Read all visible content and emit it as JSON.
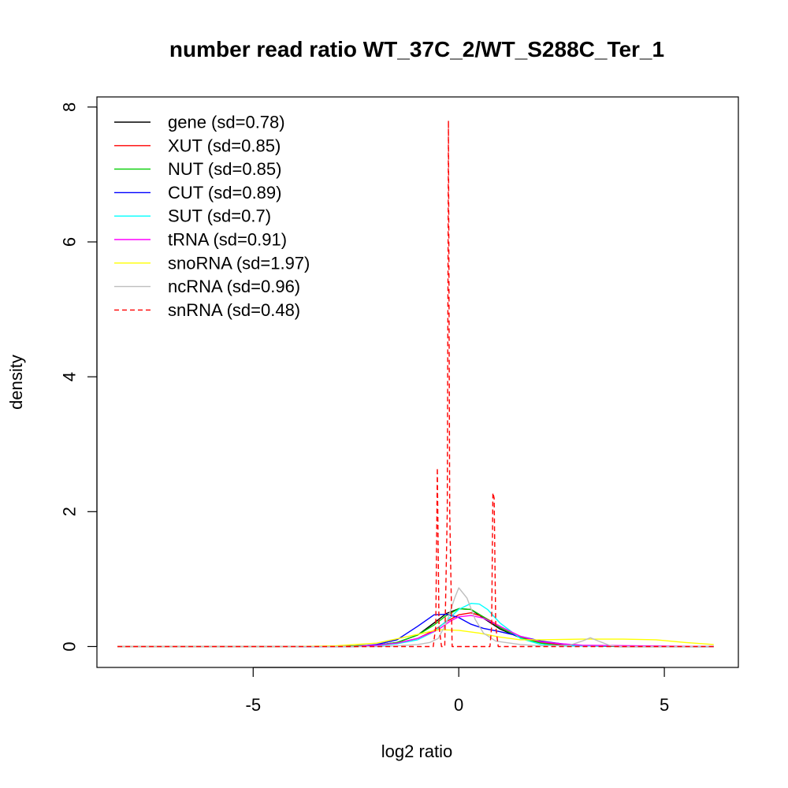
{
  "chart_data": {
    "type": "line",
    "title": "number read ratio WT_37C_2/WT_S288C_Ter_1",
    "xlabel": "log2 ratio",
    "ylabel": "density",
    "xlim": [
      -8.8,
      6.8
    ],
    "ylim": [
      -0.31,
      8.15
    ],
    "x_ticks": [
      -5,
      0,
      5
    ],
    "x_tick_labels": [
      "-5",
      "0",
      "5"
    ],
    "y_ticks": [
      0,
      2,
      4,
      6,
      8
    ],
    "y_tick_labels": [
      "0",
      "2",
      "4",
      "6",
      "8"
    ],
    "grid": false,
    "legend_position": "top-left",
    "series": [
      {
        "name": "gene (sd=0.78)",
        "color": "#000000",
        "dash": "solid",
        "x": [
          -8.3,
          -3,
          -2,
          -1.5,
          -1,
          -0.6,
          -0.3,
          0,
          0.3,
          0.6,
          1,
          1.5,
          2,
          2.5,
          3,
          4,
          6.2
        ],
        "y": [
          0,
          0,
          0.02,
          0.06,
          0.17,
          0.35,
          0.49,
          0.56,
          0.55,
          0.42,
          0.26,
          0.13,
          0.06,
          0.03,
          0.01,
          0,
          0
        ]
      },
      {
        "name": "XUT (sd=0.85)",
        "color": "#ff0000",
        "dash": "solid",
        "x": [
          -8.3,
          -3,
          -2,
          -1.5,
          -1,
          -0.6,
          -0.3,
          0,
          0.3,
          0.6,
          1,
          1.5,
          2,
          2.5,
          3,
          6.2
        ],
        "y": [
          0,
          0,
          0.02,
          0.05,
          0.12,
          0.24,
          0.37,
          0.47,
          0.5,
          0.44,
          0.3,
          0.15,
          0.06,
          0.02,
          0.01,
          0
        ]
      },
      {
        "name": "NUT (sd=0.85)",
        "color": "#00cd00",
        "dash": "solid",
        "x": [
          -8.3,
          -3,
          -2,
          -1.5,
          -1,
          -0.6,
          -0.3,
          0,
          0.3,
          0.6,
          1,
          1.5,
          2,
          2.5,
          6.2
        ],
        "y": [
          0,
          0,
          0.02,
          0.06,
          0.17,
          0.32,
          0.46,
          0.56,
          0.55,
          0.44,
          0.28,
          0.13,
          0.05,
          0.01,
          0
        ]
      },
      {
        "name": "CUT (sd=0.89)",
        "color": "#0000ff",
        "dash": "solid",
        "x": [
          -8.3,
          -2.5,
          -2,
          -1.5,
          -1,
          -0.6,
          -0.3,
          0,
          0.3,
          0.6,
          1,
          1.5,
          2,
          2.5,
          3,
          6.2
        ],
        "y": [
          0,
          0,
          0.03,
          0.1,
          0.3,
          0.47,
          0.48,
          0.43,
          0.33,
          0.27,
          0.22,
          0.15,
          0.08,
          0.04,
          0.01,
          0
        ]
      },
      {
        "name": "SUT (sd=0.7)",
        "color": "#00ffff",
        "dash": "solid",
        "x": [
          -8.3,
          -2.5,
          -2,
          -1.5,
          -1,
          -0.6,
          -0.3,
          0,
          0.3,
          0.5,
          0.7,
          1,
          1.5,
          2,
          2.5,
          6.2
        ],
        "y": [
          0,
          0,
          0.01,
          0.04,
          0.1,
          0.22,
          0.38,
          0.55,
          0.64,
          0.63,
          0.55,
          0.35,
          0.12,
          0.03,
          0.01,
          0
        ]
      },
      {
        "name": "tRNA (sd=0.91)",
        "color": "#ff00ff",
        "dash": "solid",
        "x": [
          -8.3,
          -2.5,
          -2,
          -1.5,
          -1,
          -0.5,
          -0.2,
          0,
          0.3,
          0.6,
          1,
          1.5,
          2,
          2.5,
          3,
          6.2
        ],
        "y": [
          0,
          0,
          0.02,
          0.05,
          0.12,
          0.25,
          0.38,
          0.44,
          0.46,
          0.42,
          0.3,
          0.15,
          0.07,
          0.04,
          0.02,
          0
        ]
      },
      {
        "name": "snoRNA (sd=1.97)",
        "color": "#ffff00",
        "dash": "solid",
        "x": [
          -8.3,
          -4,
          -3,
          -2,
          -1,
          -0.5,
          0,
          0.5,
          1,
          1.5,
          2,
          3,
          4,
          4.8,
          5.5,
          6.2
        ],
        "y": [
          0,
          0,
          0.01,
          0.05,
          0.18,
          0.25,
          0.24,
          0.2,
          0.14,
          0.1,
          0.1,
          0.11,
          0.11,
          0.1,
          0.06,
          0.03
        ]
      },
      {
        "name": "ncRNA (sd=0.96)",
        "color": "#bebebe",
        "dash": "solid",
        "x": [
          -8.3,
          -2,
          -1.5,
          -1,
          -0.7,
          -0.5,
          -0.3,
          -0.1,
          0,
          0.2,
          0.4,
          0.6,
          0.9,
          1.5,
          2,
          2.7,
          3,
          3.2,
          3.4,
          3.7,
          4,
          6.2
        ],
        "y": [
          0,
          0,
          0.01,
          0.03,
          0.06,
          0.12,
          0.35,
          0.72,
          0.87,
          0.72,
          0.4,
          0.2,
          0.08,
          0.03,
          0.01,
          0.02,
          0.08,
          0.13,
          0.08,
          0.01,
          0,
          0
        ]
      },
      {
        "name": "snRNA (sd=0.48)",
        "color": "#ff0000",
        "dash": "dashed",
        "x": [
          -8.3,
          -0.62,
          -0.56,
          -0.52,
          -0.48,
          -0.42,
          -0.34,
          -0.28,
          -0.25,
          -0.22,
          -0.16,
          0.76,
          0.8,
          0.83,
          0.86,
          0.9,
          0.96,
          6.2
        ],
        "y": [
          0,
          0,
          0.3,
          2.65,
          0.3,
          0,
          0,
          2.0,
          7.8,
          2.0,
          0,
          0,
          0.3,
          2.28,
          2.2,
          0.3,
          0,
          0
        ]
      }
    ]
  }
}
